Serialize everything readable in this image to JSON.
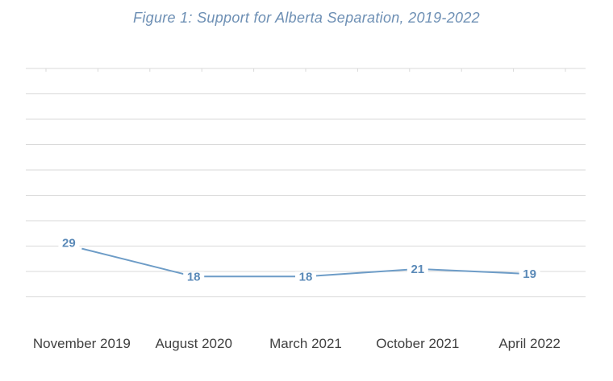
{
  "title": "Figure 1: Support for Alberta Separation, 2019-2022",
  "colors": {
    "title": "#6d8fb4",
    "line": "#6d9cc7",
    "data_label": "#5b8ab8",
    "grid": "#d9d9d9",
    "tick_label": "#404040"
  },
  "chart_data": {
    "type": "line",
    "title": "Figure 1: Support for Alberta Separation, 2019-2022",
    "xlabel": "",
    "ylabel": "",
    "categories": [
      "November 2019",
      "August 2020",
      "March 2021",
      "October 2021",
      "April 2022"
    ],
    "series": [
      {
        "values": [
          29,
          18,
          18,
          21,
          19
        ]
      }
    ],
    "ylim": [
      0,
      100
    ],
    "y_gridlines_every": 10,
    "grid": true,
    "legend": "none",
    "data_labels": true
  }
}
